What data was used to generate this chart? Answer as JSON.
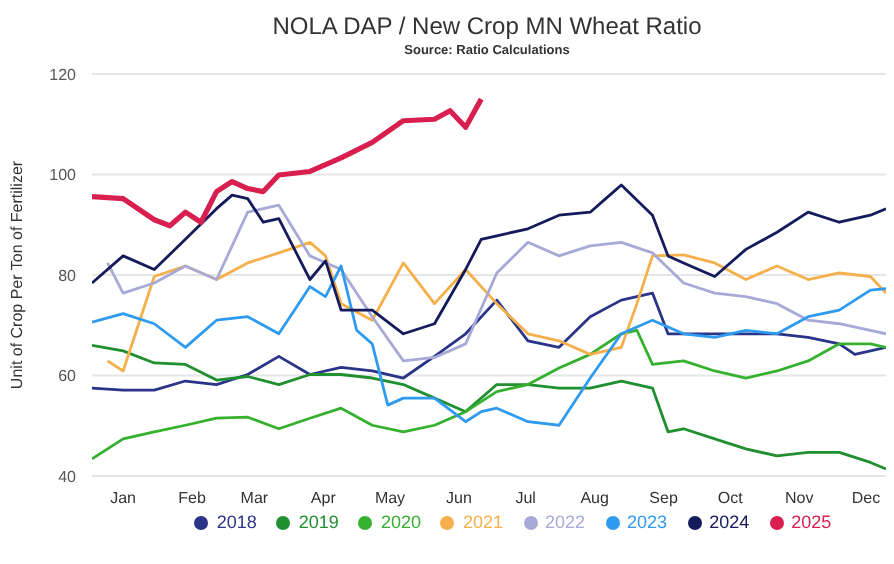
{
  "chart_data": {
    "type": "line",
    "title": "NOLA DAP / New Crop MN Wheat Ratio",
    "subtitle": "Source: Ratio Calculations",
    "ylabel": "Unit of Crop Per Ton of Fertilizer",
    "xlim": [
      "--01-01",
      "--12-24"
    ],
    "xticks": [
      {
        "value": "--01-15",
        "label": "Jan"
      },
      {
        "value": "--02-15",
        "label": "Feb"
      },
      {
        "value": "--03-15",
        "label": "Mar"
      },
      {
        "value": "--04-15",
        "label": "Apr"
      },
      {
        "value": "--05-15",
        "label": "May"
      },
      {
        "value": "--06-15",
        "label": "Jun"
      },
      {
        "value": "--07-15",
        "label": "Jul"
      },
      {
        "value": "--08-15",
        "label": "Aug"
      },
      {
        "value": "--09-15",
        "label": "Sep"
      },
      {
        "value": "--10-15",
        "label": "Oct"
      },
      {
        "value": "--11-15",
        "label": "Nov"
      },
      {
        "value": "--12-15",
        "label": "Dec"
      }
    ],
    "ylim": [
      40,
      120
    ],
    "yticks": [
      40,
      60,
      80,
      100,
      120
    ],
    "grid": "y",
    "legend": "bottom",
    "marker": "none",
    "line_style": "solid",
    "series": [
      {
        "name": "2018",
        "color": "#2a3489",
        "x": [
          "--01-01",
          "--01-15",
          "--01-29",
          "--02-12",
          "--02-26",
          "--03-12",
          "--03-26",
          "--04-09",
          "--04-23",
          "--05-07",
          "--05-21",
          "--06-04",
          "--06-18",
          "--07-02",
          "--07-16",
          "--07-30",
          "--08-13",
          "--08-27",
          "--09-10",
          "--09-17",
          "--09-24",
          "--10-08",
          "--10-22",
          "--11-05",
          "--11-19",
          "--12-03",
          "--12-10",
          "--12-17",
          "--12-24"
        ],
        "values": [
          57.5,
          57.1,
          57.1,
          58.9,
          58.2,
          60.2,
          63.8,
          60.2,
          61.6,
          60.9,
          59.5,
          63.8,
          68.3,
          75.0,
          66.9,
          65.6,
          71.7,
          75.0,
          76.4,
          68.3,
          68.3,
          68.3,
          68.3,
          68.3,
          67.6,
          66.3,
          64.2,
          64.9,
          65.6
        ]
      },
      {
        "name": "2019",
        "color": "#1f8f2f",
        "x": [
          "--01-01",
          "--01-15",
          "--01-29",
          "--02-12",
          "--02-26",
          "--03-12",
          "--03-26",
          "--04-09",
          "--04-23",
          "--05-07",
          "--05-21",
          "--06-04",
          "--06-18",
          "--07-02",
          "--07-16",
          "--07-30",
          "--08-13",
          "--08-27",
          "--09-10",
          "--09-17",
          "--09-24",
          "--10-08",
          "--10-22",
          "--11-05",
          "--11-19",
          "--12-03",
          "--12-17",
          "--12-24"
        ],
        "values": [
          66.0,
          64.9,
          62.5,
          62.2,
          59.1,
          59.8,
          58.2,
          60.2,
          60.2,
          59.5,
          58.2,
          55.5,
          52.8,
          58.2,
          58.2,
          57.5,
          57.5,
          58.9,
          57.5,
          48.8,
          49.4,
          47.4,
          45.4,
          44.0,
          44.7,
          44.7,
          42.7,
          41.4
        ]
      },
      {
        "name": "2020",
        "color": "#35b02f",
        "x": [
          "--01-01",
          "--01-15",
          "--01-29",
          "--02-12",
          "--02-26",
          "--03-12",
          "--03-26",
          "--04-09",
          "--04-23",
          "--05-07",
          "--05-21",
          "--06-04",
          "--06-18",
          "--07-02",
          "--07-16",
          "--07-30",
          "--08-13",
          "--08-27",
          "--09-03",
          "--09-10",
          "--09-24",
          "--10-08",
          "--10-22",
          "--11-05",
          "--11-19",
          "--12-03",
          "--12-17",
          "--12-24"
        ],
        "values": [
          43.4,
          47.4,
          48.8,
          50.1,
          51.5,
          51.7,
          49.4,
          51.5,
          53.5,
          50.1,
          48.8,
          50.1,
          52.8,
          56.8,
          58.2,
          61.5,
          64.2,
          68.3,
          69.0,
          62.2,
          62.9,
          60.9,
          59.5,
          60.9,
          62.9,
          66.3,
          66.3,
          65.6
        ]
      },
      {
        "name": "2021",
        "color": "#f5b04b",
        "x": [
          "--01-08",
          "--01-15",
          "--01-29",
          "--02-12",
          "--02-26",
          "--03-12",
          "--03-26",
          "--04-09",
          "--04-16",
          "--04-23",
          "--05-07",
          "--05-21",
          "--06-04",
          "--06-18",
          "--07-02",
          "--07-16",
          "--07-30",
          "--08-13",
          "--08-27",
          "--09-03",
          "--09-10",
          "--09-24",
          "--10-08",
          "--10-22",
          "--11-05",
          "--11-19",
          "--12-03",
          "--12-17",
          "--12-24"
        ],
        "values": [
          62.9,
          60.9,
          79.7,
          81.8,
          79.1,
          82.4,
          84.4,
          86.5,
          83.8,
          74.3,
          71.0,
          82.4,
          74.3,
          81.1,
          74.3,
          68.3,
          66.9,
          64.2,
          65.6,
          74.3,
          83.8,
          84.0,
          82.4,
          79.1,
          81.8,
          79.1,
          80.4,
          79.7,
          76.4
        ]
      },
      {
        "name": "2022",
        "color": "#a7a9d6",
        "x": [
          "--01-08",
          "--01-15",
          "--01-29",
          "--02-12",
          "--02-26",
          "--03-12",
          "--03-26",
          "--04-09",
          "--04-23",
          "--05-07",
          "--05-21",
          "--06-04",
          "--06-18",
          "--07-02",
          "--07-16",
          "--07-30",
          "--08-13",
          "--08-27",
          "--09-10",
          "--09-24",
          "--10-08",
          "--10-22",
          "--11-05",
          "--11-19",
          "--12-03",
          "--12-17",
          "--12-24"
        ],
        "values": [
          82.4,
          76.4,
          78.4,
          81.8,
          79.1,
          92.5,
          93.9,
          83.8,
          81.1,
          71.7,
          62.9,
          63.6,
          66.3,
          80.4,
          86.5,
          83.8,
          85.8,
          86.5,
          84.4,
          78.4,
          76.4,
          75.7,
          74.3,
          71.0,
          70.3,
          69.0,
          68.3
        ]
      },
      {
        "name": "2023",
        "color": "#2f9bf0",
        "x": [
          "--01-01",
          "--01-15",
          "--01-29",
          "--02-12",
          "--02-26",
          "--03-12",
          "--03-26",
          "--04-02",
          "--04-09",
          "--04-16",
          "--04-23",
          "--04-30",
          "--05-07",
          "--05-14",
          "--05-21",
          "--06-04",
          "--06-18",
          "--06-25",
          "--07-02",
          "--07-16",
          "--07-30",
          "--08-13",
          "--08-27",
          "--09-10",
          "--09-24",
          "--10-08",
          "--10-22",
          "--11-05",
          "--11-19",
          "--12-03",
          "--12-17",
          "--12-24"
        ],
        "values": [
          70.6,
          72.3,
          70.3,
          65.6,
          71.0,
          71.7,
          68.3,
          73.0,
          77.7,
          75.7,
          81.8,
          69.0,
          66.3,
          54.1,
          55.5,
          55.5,
          50.8,
          52.8,
          53.5,
          50.8,
          50.1,
          59.5,
          68.3,
          71.0,
          68.3,
          67.6,
          69.0,
          68.3,
          71.7,
          73.0,
          77.0,
          77.3
        ]
      },
      {
        "name": "2024",
        "color": "#151a5c",
        "x": [
          "--01-01",
          "--01-15",
          "--01-29",
          "--02-12",
          "--02-26",
          "--03-05",
          "--03-12",
          "--03-19",
          "--03-26",
          "--04-09",
          "--04-16",
          "--04-23",
          "--05-07",
          "--05-21",
          "--06-04",
          "--06-18",
          "--06-25",
          "--07-02",
          "--07-16",
          "--07-30",
          "--08-13",
          "--08-20",
          "--08-27",
          "--09-10",
          "--09-17",
          "--09-24",
          "--10-08",
          "--10-22",
          "--11-05",
          "--11-19",
          "--12-03",
          "--12-17",
          "--12-24"
        ],
        "values": [
          78.4,
          83.8,
          81.1,
          87.1,
          93.2,
          95.9,
          95.2,
          90.5,
          91.2,
          79.1,
          82.8,
          73.0,
          73.0,
          68.3,
          70.3,
          81.1,
          87.1,
          87.8,
          89.2,
          91.9,
          92.5,
          95.2,
          97.9,
          91.9,
          83.8,
          82.4,
          79.7,
          85.1,
          88.5,
          92.5,
          90.5,
          91.9,
          93.2
        ]
      },
      {
        "name": "2025",
        "color": "#d81f4f",
        "x": [
          "--01-01",
          "--01-15",
          "--01-29",
          "--02-05",
          "--02-12",
          "--02-19",
          "--02-26",
          "--03-05",
          "--03-12",
          "--03-19",
          "--03-26",
          "--04-09",
          "--04-23",
          "--05-07",
          "--05-21",
          "--06-04",
          "--06-11",
          "--06-18",
          "--06-25"
        ],
        "values": [
          95.6,
          95.2,
          91.0,
          89.8,
          92.5,
          90.5,
          96.6,
          98.6,
          97.2,
          96.6,
          99.9,
          100.6,
          103.3,
          106.4,
          110.7,
          111.0,
          112.7,
          109.4,
          115.0
        ]
      }
    ]
  }
}
